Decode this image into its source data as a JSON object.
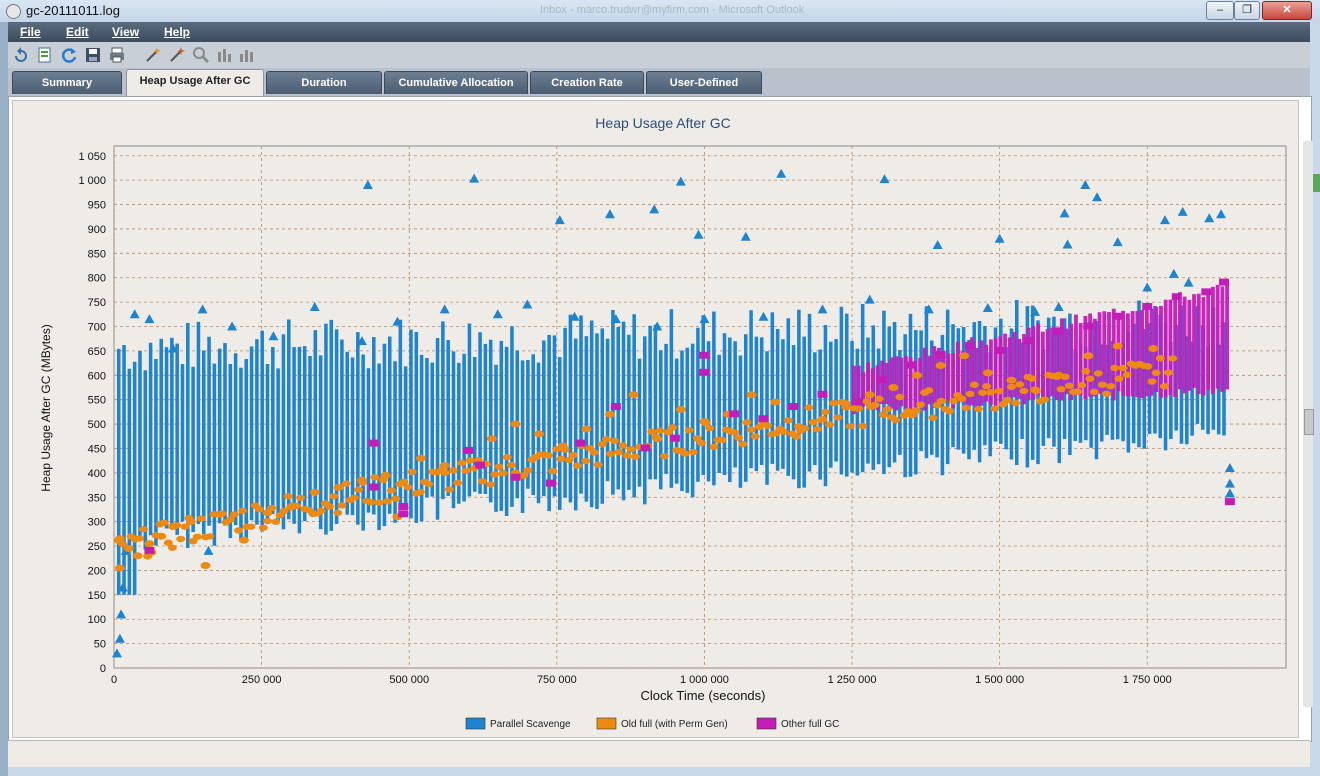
{
  "window": {
    "title": "gc-20111011.log",
    "ghost_title": "Inbox - marco.trudwr@myfirm.com - Microsoft Outlook",
    "minimize": "–",
    "maximize": "❐",
    "close": "✕"
  },
  "menu": {
    "file": "File",
    "edit": "Edit",
    "view": "View",
    "help": "Help"
  },
  "toolbar": {
    "icons": [
      "open-icon",
      "export-icon",
      "refresh-icon",
      "save-icon",
      "print-icon",
      "wand-icon",
      "wand-alt-icon",
      "zoom-icon",
      "bar-chart-icon",
      "bar-chart-alt-icon"
    ]
  },
  "tabs": [
    {
      "label": "Summary"
    },
    {
      "label": "Heap Usage After GC",
      "active": true
    },
    {
      "label": "Duration"
    },
    {
      "label": "Cumulative Allocation"
    },
    {
      "label": "Creation Rate"
    },
    {
      "label": "User-Defined"
    }
  ],
  "chart_data": {
    "type": "scatter",
    "title": "Heap Usage After GC",
    "xlabel": "Clock Time  (seconds)",
    "ylabel": "Heap Usage After GC  (MBytes)",
    "xlim": [
      0,
      1985000
    ],
    "ylim": [
      0,
      1070
    ],
    "x_ticks": [
      0,
      250000,
      500000,
      750000,
      1000000,
      1250000,
      1500000,
      1750000
    ],
    "x_tick_labels": [
      "0",
      "250 000",
      "500 000",
      "750 000",
      "1 000 000",
      "1 250 000",
      "1 500 000",
      "1 750 000"
    ],
    "y_ticks": [
      0,
      50,
      100,
      150,
      200,
      250,
      300,
      350,
      400,
      450,
      500,
      550,
      600,
      650,
      700,
      750,
      800,
      850,
      900,
      950,
      1000,
      1050
    ],
    "y_tick_labels": [
      "0",
      "50",
      "100",
      "150",
      "200",
      "250",
      "300",
      "350",
      "400",
      "450",
      "500",
      "550",
      "600",
      "650",
      "700",
      "750",
      "800",
      "850",
      "900",
      "950",
      "1 000",
      "1 050"
    ],
    "grid": true,
    "legend_position": "bottom",
    "series": [
      {
        "name": "Parallel Scavenge",
        "color": "#1f84d0",
        "marker": "triangle",
        "points": [
          [
            430000,
            990
          ],
          [
            610000,
            1003
          ],
          [
            755000,
            918
          ],
          [
            840000,
            930
          ],
          [
            915000,
            940
          ],
          [
            960000,
            997
          ],
          [
            990000,
            888
          ],
          [
            1070000,
            884
          ],
          [
            1130000,
            1013
          ],
          [
            1305000,
            1002
          ],
          [
            1395000,
            867
          ],
          [
            1500000,
            880
          ],
          [
            1610000,
            932
          ],
          [
            1615000,
            868
          ],
          [
            1645000,
            990
          ],
          [
            1665000,
            965
          ],
          [
            1700000,
            873
          ],
          [
            1780000,
            918
          ],
          [
            1795000,
            808
          ],
          [
            1810000,
            935
          ],
          [
            1855000,
            922
          ],
          [
            1875000,
            930
          ],
          [
            1890000,
            410
          ],
          [
            1890000,
            378
          ],
          [
            1890000,
            358
          ],
          [
            10000,
            60
          ],
          [
            5000,
            30
          ],
          [
            12000,
            110
          ],
          [
            15000,
            165
          ],
          [
            20000,
            240
          ],
          [
            35000,
            725
          ],
          [
            60000,
            715
          ],
          [
            100000,
            655
          ],
          [
            150000,
            735
          ],
          [
            160000,
            240
          ],
          [
            200000,
            700
          ],
          [
            270000,
            680
          ],
          [
            340000,
            740
          ],
          [
            420000,
            670
          ],
          [
            480000,
            710
          ],
          [
            560000,
            735
          ],
          [
            650000,
            725
          ],
          [
            700000,
            745
          ],
          [
            780000,
            720
          ],
          [
            850000,
            715
          ],
          [
            920000,
            700
          ],
          [
            1000000,
            715
          ],
          [
            1100000,
            720
          ],
          [
            1200000,
            735
          ],
          [
            1280000,
            755
          ],
          [
            1380000,
            735
          ],
          [
            1480000,
            738
          ],
          [
            1560000,
            730
          ],
          [
            1600000,
            740
          ],
          [
            1750000,
            780
          ],
          [
            1820000,
            790
          ]
        ]
      },
      {
        "name": "Old full (with Perm Gen)",
        "color": "#ee8a12",
        "marker": "circle",
        "points": [
          [
            10000,
            265
          ],
          [
            10000,
            205
          ],
          [
            25000,
            245
          ],
          [
            40000,
            230
          ],
          [
            60000,
            255
          ],
          [
            80000,
            270
          ],
          [
            100000,
            290
          ],
          [
            130000,
            300
          ],
          [
            155000,
            210
          ],
          [
            180000,
            315
          ],
          [
            220000,
            262
          ],
          [
            260000,
            318
          ],
          [
            300000,
            330
          ],
          [
            340000,
            360
          ],
          [
            380000,
            370
          ],
          [
            420000,
            385
          ],
          [
            460000,
            395
          ],
          [
            480000,
            310
          ],
          [
            520000,
            430
          ],
          [
            560000,
            415
          ],
          [
            600000,
            445
          ],
          [
            640000,
            470
          ],
          [
            680000,
            500
          ],
          [
            720000,
            480
          ],
          [
            760000,
            455
          ],
          [
            800000,
            490
          ],
          [
            840000,
            520
          ],
          [
            880000,
            560
          ],
          [
            920000,
            470
          ],
          [
            960000,
            530
          ],
          [
            1000000,
            505
          ],
          [
            1040000,
            520
          ],
          [
            1080000,
            560
          ],
          [
            1120000,
            545
          ],
          [
            1160000,
            495
          ],
          [
            1200000,
            510
          ],
          [
            1240000,
            535
          ],
          [
            1280000,
            560
          ],
          [
            1320000,
            575
          ],
          [
            1360000,
            600
          ],
          [
            1400000,
            620
          ],
          [
            1440000,
            640
          ],
          [
            1480000,
            605
          ],
          [
            1520000,
            590
          ],
          [
            1560000,
            570
          ],
          [
            1600000,
            600
          ],
          [
            1650000,
            640
          ],
          [
            1700000,
            660
          ],
          [
            1760000,
            655
          ]
        ]
      },
      {
        "name": "Other full GC",
        "color": "#c41cb9",
        "marker": "square",
        "points": [
          [
            60000,
            240
          ],
          [
            440000,
            460
          ],
          [
            440000,
            370
          ],
          [
            490000,
            330
          ],
          [
            490000,
            315
          ],
          [
            600000,
            445
          ],
          [
            620000,
            415
          ],
          [
            680000,
            390
          ],
          [
            740000,
            378
          ],
          [
            790000,
            460
          ],
          [
            850000,
            535
          ],
          [
            900000,
            450
          ],
          [
            950000,
            470
          ],
          [
            1000000,
            605
          ],
          [
            1000000,
            640
          ],
          [
            1050000,
            520
          ],
          [
            1100000,
            510
          ],
          [
            1150000,
            535
          ],
          [
            1200000,
            560
          ],
          [
            1260000,
            545
          ],
          [
            1300000,
            590
          ],
          [
            1350000,
            620
          ],
          [
            1400000,
            640
          ],
          [
            1450000,
            660
          ],
          [
            1500000,
            650
          ],
          [
            1550000,
            670
          ],
          [
            1600000,
            690
          ],
          [
            1650000,
            700
          ],
          [
            1700000,
            720
          ],
          [
            1750000,
            740
          ],
          [
            1800000,
            760
          ],
          [
            1850000,
            770
          ],
          [
            1880000,
            790
          ],
          [
            1890000,
            340
          ]
        ]
      }
    ]
  }
}
